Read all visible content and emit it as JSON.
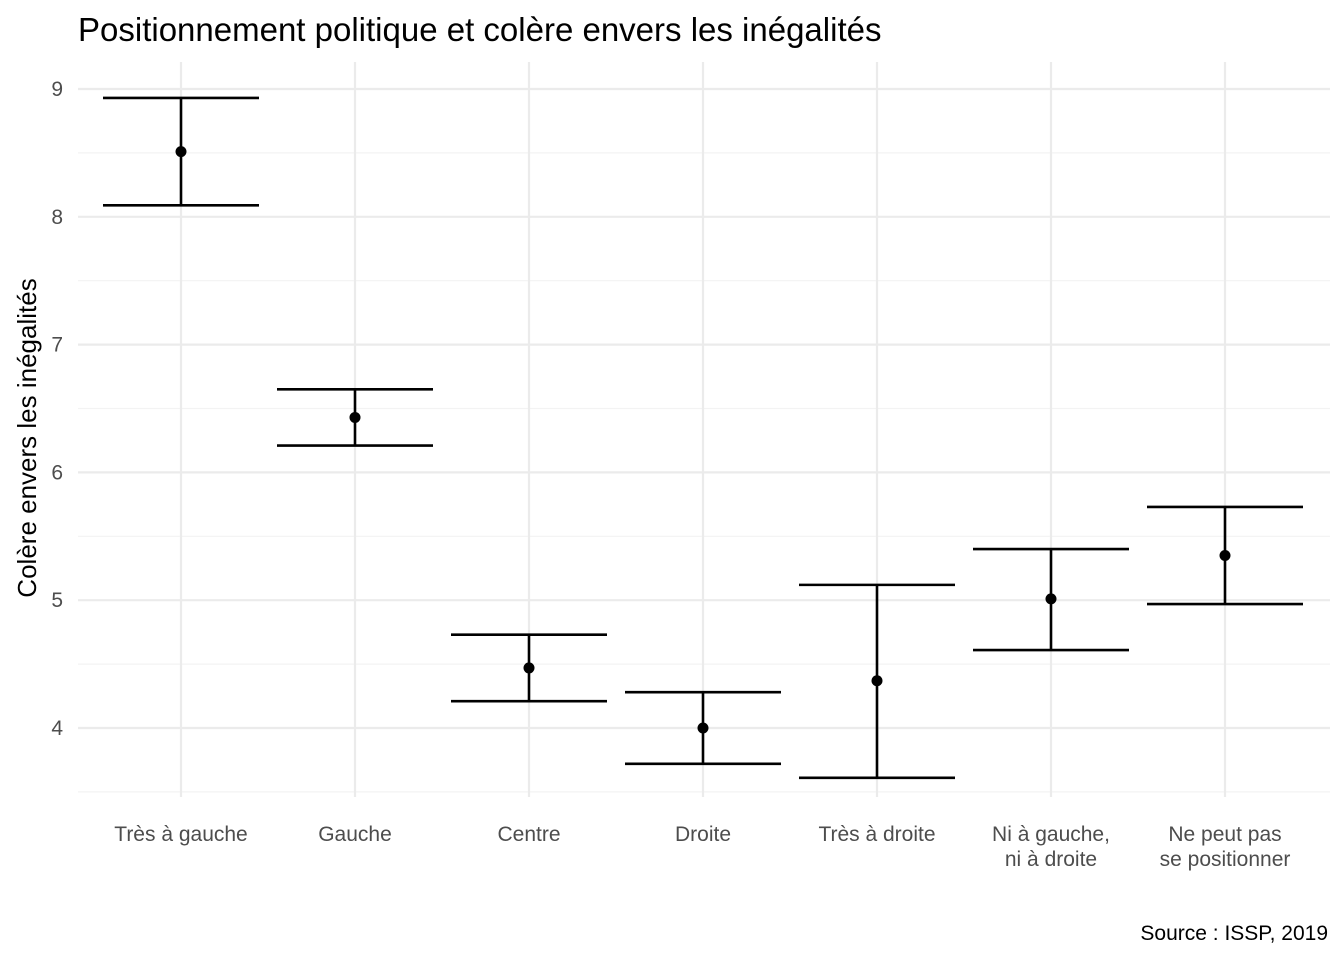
{
  "chart_data": {
    "type": "errorbar",
    "title": "Positionnement politique et colère envers les inégalités",
    "xlabel": "",
    "ylabel": "Colère envers les inégalités",
    "caption": "Source : ISSP, 2019",
    "ylim": [
      3.45,
      9.2
    ],
    "yticks": [
      4,
      5,
      6,
      7,
      8,
      9
    ],
    "grid": true,
    "categories": [
      [
        "Très à gauche"
      ],
      [
        "Gauche"
      ],
      [
        "Centre"
      ],
      [
        "Droite"
      ],
      [
        "Très à droite"
      ],
      [
        "Ni à gauche,",
        "ni à droite"
      ],
      [
        "Ne peut pas",
        "se positionner"
      ]
    ],
    "series": [
      {
        "mean": [
          8.51,
          6.43,
          4.47,
          4.0,
          4.37,
          5.01,
          5.35
        ],
        "lower": [
          8.09,
          6.21,
          4.21,
          3.72,
          3.61,
          4.61,
          4.97
        ],
        "upper": [
          8.93,
          6.65,
          4.73,
          4.28,
          5.12,
          5.4,
          5.73
        ]
      }
    ]
  }
}
